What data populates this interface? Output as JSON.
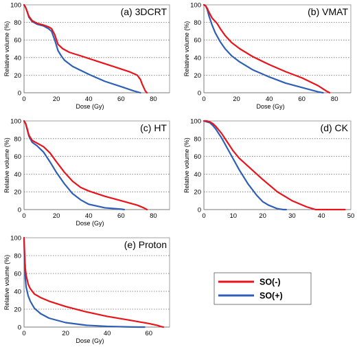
{
  "legend": {
    "entries": [
      {
        "label": "SO(-)",
        "color": "#e8141a"
      },
      {
        "label": "SO(+)",
        "color": "#2e5fb7"
      }
    ]
  },
  "chart_data": [
    {
      "type": "line",
      "title": "(a) 3DCRT",
      "xlabel": "Dose (Gy)",
      "ylabel": "Relative volume (%)",
      "xlim": [
        0,
        90
      ],
      "ylim": [
        0,
        100
      ],
      "xticks": [
        "0",
        "20",
        "40",
        "60",
        "80"
      ],
      "yticks": [
        "0",
        "20",
        "40",
        "60",
        "80",
        "100"
      ],
      "grid": "horizontal dotted",
      "series": [
        {
          "name": "SO(-)",
          "color": "#e8141a",
          "x": [
            0,
            1,
            2,
            3,
            5,
            8,
            12,
            15,
            17,
            19,
            21,
            24,
            28,
            35,
            45,
            55,
            65,
            70,
            72,
            73,
            74,
            75,
            76
          ],
          "y": [
            100,
            97,
            92,
            87,
            82,
            79,
            77,
            75,
            73,
            66,
            55,
            50,
            46,
            42,
            36,
            30,
            24,
            20,
            15,
            10,
            6,
            2,
            0
          ]
        },
        {
          "name": "SO(+)",
          "color": "#2e5fb7",
          "x": [
            0,
            1,
            2,
            3,
            5,
            8,
            12,
            15,
            17,
            19,
            21,
            23,
            25,
            30,
            40,
            50,
            60,
            68,
            72
          ],
          "y": [
            100,
            97,
            92,
            86,
            81,
            78,
            76,
            73,
            70,
            60,
            48,
            42,
            37,
            30,
            21,
            13,
            7,
            2,
            0
          ]
        }
      ]
    },
    {
      "type": "line",
      "title": "(b) VMAT",
      "xlabel": "Dose (Gy)",
      "ylabel": "Relative volume (%)",
      "xlim": [
        0,
        90
      ],
      "ylim": [
        0,
        100
      ],
      "xticks": [
        "0",
        "20",
        "40",
        "60",
        "80"
      ],
      "yticks": [
        "0",
        "20",
        "40",
        "60",
        "80",
        "100"
      ],
      "grid": "horizontal dotted",
      "series": [
        {
          "name": "SO(-)",
          "color": "#e8141a",
          "x": [
            0,
            1,
            2,
            3,
            5,
            8,
            10,
            13,
            17,
            22,
            30,
            40,
            50,
            60,
            70,
            75,
            77
          ],
          "y": [
            100,
            99,
            96,
            92,
            85,
            79,
            73,
            65,
            57,
            50,
            41,
            32,
            24,
            17,
            8,
            2,
            0
          ]
        },
        {
          "name": "SO(+)",
          "color": "#2e5fb7",
          "x": [
            0,
            1,
            2,
            3,
            5,
            7,
            10,
            13,
            17,
            22,
            30,
            40,
            50,
            60,
            70,
            73
          ],
          "y": [
            100,
            99,
            95,
            88,
            77,
            68,
            58,
            50,
            42,
            35,
            26,
            18,
            11,
            6,
            1,
            0
          ]
        }
      ]
    },
    {
      "type": "line",
      "title": "(c) HT",
      "xlabel": "Dose (Gy)",
      "ylabel": "Relative volume (%)",
      "xlim": [
        0,
        90
      ],
      "ylim": [
        0,
        100
      ],
      "xticks": [
        "0",
        "20",
        "40",
        "60",
        "80"
      ],
      "yticks": [
        "0",
        "20",
        "40",
        "60",
        "80",
        "100"
      ],
      "grid": "horizontal dotted",
      "series": [
        {
          "name": "SO(-)",
          "color": "#e8141a",
          "x": [
            0,
            1,
            2,
            3,
            5,
            8,
            12,
            16,
            20,
            25,
            30,
            35,
            40,
            50,
            60,
            70,
            74,
            76
          ],
          "y": [
            100,
            97,
            91,
            84,
            78,
            75,
            71,
            64,
            54,
            42,
            32,
            25,
            21,
            15,
            10,
            5,
            2,
            0
          ]
        },
        {
          "name": "SO(+)",
          "color": "#2e5fb7",
          "x": [
            0,
            1,
            2,
            3,
            5,
            8,
            12,
            16,
            20,
            25,
            30,
            35,
            40,
            50,
            60,
            62
          ],
          "y": [
            100,
            97,
            90,
            83,
            76,
            72,
            65,
            54,
            42,
            29,
            18,
            11,
            6,
            2,
            0.5,
            0
          ]
        }
      ]
    },
    {
      "type": "line",
      "title": "(d) CK",
      "xlabel": "",
      "ylabel": "Relative volume (%)",
      "xlim": [
        0,
        50
      ],
      "ylim": [
        0,
        100
      ],
      "xticks": [
        "0",
        "10",
        "20",
        "30",
        "40",
        "50"
      ],
      "yticks": [
        "0",
        "20",
        "40",
        "60",
        "80",
        "100"
      ],
      "grid": "horizontal dotted",
      "series": [
        {
          "name": "SO(-)",
          "color": "#e8141a",
          "x": [
            0,
            1,
            2,
            3,
            4,
            6,
            8,
            10,
            12,
            15,
            18,
            20,
            25,
            30,
            35,
            37,
            38,
            40,
            48
          ],
          "y": [
            100,
            100,
            99,
            97,
            94,
            86,
            76,
            66,
            58,
            49,
            40,
            34,
            20,
            10,
            3,
            1,
            0,
            0,
            0
          ]
        },
        {
          "name": "SO(+)",
          "color": "#2e5fb7",
          "x": [
            0,
            1,
            2,
            3,
            4,
            6,
            8,
            10,
            12,
            15,
            18,
            20,
            22,
            25,
            27,
            28
          ],
          "y": [
            100,
            99,
            98,
            95,
            91,
            81,
            69,
            57,
            45,
            29,
            16,
            9,
            5,
            1,
            0,
            0
          ]
        }
      ]
    },
    {
      "type": "line",
      "title": "(e) Proton",
      "xlabel": "Dose (Gy)",
      "ylabel": "Relative volume (%)",
      "xlim": [
        0,
        70
      ],
      "ylim": [
        0,
        100
      ],
      "xticks": [
        "0",
        "20",
        "40",
        "60"
      ],
      "yticks": [
        "0",
        "20",
        "40",
        "60",
        "80",
        "100"
      ],
      "grid": "horizontal dotted",
      "series": [
        {
          "name": "SO(-)",
          "color": "#e8141a",
          "x": [
            0,
            0.3,
            0.6,
            1,
            2,
            3,
            5,
            8,
            12,
            20,
            30,
            40,
            50,
            60,
            64,
            66,
            67
          ],
          "y": [
            100,
            80,
            66,
            58,
            48,
            43,
            37,
            33,
            29,
            23,
            17,
            12,
            8,
            4,
            2,
            0.5,
            0
          ]
        },
        {
          "name": "SO(+)",
          "color": "#2e5fb7",
          "x": [
            0,
            0.3,
            0.6,
            1,
            2,
            3,
            5,
            8,
            12,
            20,
            30,
            40,
            50,
            55,
            58
          ],
          "y": [
            100,
            70,
            55,
            45,
            35,
            29,
            21,
            15,
            10,
            5,
            2,
            0.8,
            0.2,
            0,
            0
          ]
        }
      ]
    }
  ]
}
